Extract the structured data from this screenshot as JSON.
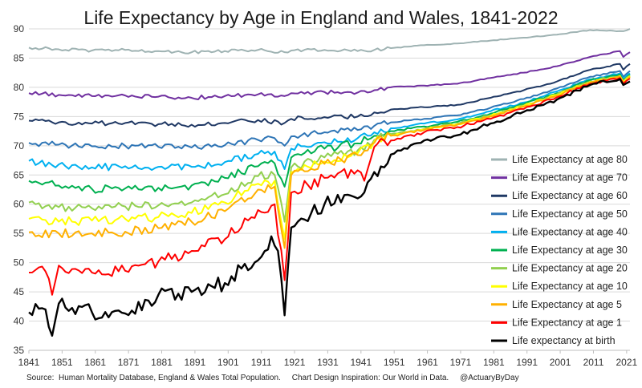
{
  "chart_data": {
    "type": "line",
    "title": "Life Expectancy by Age in England and Wales, 1841-2022",
    "xlabel": "",
    "ylabel": "",
    "xlim": [
      1841,
      2022
    ],
    "ylim": [
      35,
      90
    ],
    "grid": "horizontal",
    "legend_position": "right",
    "x_ticks": [
      "1841",
      "1851",
      "1861",
      "1871",
      "1881",
      "1891",
      "1901",
      "1911",
      "1921",
      "1931",
      "1941",
      "1951",
      "1961",
      "1971",
      "1981",
      "1991",
      "2001",
      "2011",
      "2021"
    ],
    "y_ticks": [
      "35",
      "40",
      "45",
      "50",
      "55",
      "60",
      "65",
      "70",
      "75",
      "80",
      "85",
      "90"
    ],
    "series": [
      {
        "name": "Life Expectancy at age 80",
        "color": "#9fb3b3",
        "points": [
          [
            1841,
            86.8
          ],
          [
            1850,
            86.5
          ],
          [
            1860,
            86.3
          ],
          [
            1870,
            86.4
          ],
          [
            1880,
            86.2
          ],
          [
            1890,
            86.0
          ],
          [
            1900,
            86.2
          ],
          [
            1910,
            86.4
          ],
          [
            1918,
            86.0
          ],
          [
            1920,
            86.3
          ],
          [
            1930,
            86.4
          ],
          [
            1940,
            86.2
          ],
          [
            1945,
            86.4
          ],
          [
            1950,
            86.7
          ],
          [
            1960,
            87.2
          ],
          [
            1970,
            87.5
          ],
          [
            1980,
            88.0
          ],
          [
            1990,
            88.5
          ],
          [
            2000,
            89.0
          ],
          [
            2010,
            89.8
          ],
          [
            2020,
            89.6
          ],
          [
            2022,
            90.0
          ]
        ]
      },
      {
        "name": "Life Expectancy at age 70",
        "color": "#7030a0",
        "points": [
          [
            1841,
            79.0
          ],
          [
            1850,
            78.7
          ],
          [
            1860,
            78.5
          ],
          [
            1870,
            78.6
          ],
          [
            1880,
            78.4
          ],
          [
            1890,
            78.2
          ],
          [
            1900,
            78.5
          ],
          [
            1910,
            78.8
          ],
          [
            1918,
            78.5
          ],
          [
            1920,
            79.0
          ],
          [
            1930,
            79.2
          ],
          [
            1940,
            79.1
          ],
          [
            1945,
            79.5
          ],
          [
            1950,
            80.0
          ],
          [
            1960,
            80.3
          ],
          [
            1970,
            80.6
          ],
          [
            1980,
            81.6
          ],
          [
            1990,
            82.5
          ],
          [
            2000,
            83.6
          ],
          [
            2010,
            85.2
          ],
          [
            2019,
            86.2
          ],
          [
            2020,
            85.2
          ],
          [
            2022,
            86.0
          ]
        ]
      },
      {
        "name": "Life Expectancy at age 60",
        "color": "#1f3864",
        "points": [
          [
            1841,
            74.3
          ],
          [
            1850,
            74.0
          ],
          [
            1860,
            73.8
          ],
          [
            1870,
            73.9
          ],
          [
            1880,
            73.7
          ],
          [
            1890,
            73.6
          ],
          [
            1900,
            73.9
          ],
          [
            1910,
            74.4
          ],
          [
            1918,
            73.9
          ],
          [
            1920,
            74.6
          ],
          [
            1930,
            74.9
          ],
          [
            1940,
            75.0
          ],
          [
            1945,
            75.7
          ],
          [
            1950,
            76.2
          ],
          [
            1960,
            76.6
          ],
          [
            1970,
            77.0
          ],
          [
            1980,
            78.2
          ],
          [
            1990,
            79.5
          ],
          [
            2000,
            81.0
          ],
          [
            2010,
            83.0
          ],
          [
            2019,
            84.0
          ],
          [
            2020,
            83.0
          ],
          [
            2022,
            84.0
          ]
        ]
      },
      {
        "name": "Life Expectancy at age 50",
        "color": "#2e75b6",
        "points": [
          [
            1841,
            70.5
          ],
          [
            1850,
            70.2
          ],
          [
            1860,
            69.9
          ],
          [
            1870,
            70.0
          ],
          [
            1880,
            69.8
          ],
          [
            1890,
            69.7
          ],
          [
            1900,
            70.1
          ],
          [
            1910,
            71.0
          ],
          [
            1915,
            71.3
          ],
          [
            1918,
            70.0
          ],
          [
            1920,
            71.6
          ],
          [
            1930,
            72.3
          ],
          [
            1940,
            72.7
          ],
          [
            1945,
            73.4
          ],
          [
            1950,
            74.0
          ],
          [
            1960,
            74.6
          ],
          [
            1970,
            75.2
          ],
          [
            1980,
            76.5
          ],
          [
            1990,
            78.0
          ],
          [
            2000,
            79.8
          ],
          [
            2010,
            81.8
          ],
          [
            2019,
            82.8
          ],
          [
            2020,
            81.8
          ],
          [
            2022,
            82.8
          ]
        ]
      },
      {
        "name": "Life Expectancy at age 40",
        "color": "#00b0f0",
        "points": [
          [
            1841,
            67.4
          ],
          [
            1850,
            66.8
          ],
          [
            1860,
            66.3
          ],
          [
            1870,
            66.5
          ],
          [
            1880,
            66.4
          ],
          [
            1890,
            66.4
          ],
          [
            1900,
            67.2
          ],
          [
            1910,
            68.6
          ],
          [
            1915,
            69.0
          ],
          [
            1918,
            66.0
          ],
          [
            1920,
            69.5
          ],
          [
            1930,
            70.6
          ],
          [
            1940,
            71.3
          ],
          [
            1945,
            72.3
          ],
          [
            1950,
            73.0
          ],
          [
            1960,
            73.8
          ],
          [
            1970,
            74.5
          ],
          [
            1980,
            75.9
          ],
          [
            1990,
            77.4
          ],
          [
            2000,
            79.3
          ],
          [
            2010,
            81.4
          ],
          [
            2019,
            82.4
          ],
          [
            2020,
            81.4
          ],
          [
            2022,
            82.4
          ]
        ]
      },
      {
        "name": "Life Expectancy at age 30",
        "color": "#00b050",
        "points": [
          [
            1841,
            64.0
          ],
          [
            1850,
            63.2
          ],
          [
            1860,
            62.6
          ],
          [
            1870,
            62.7
          ],
          [
            1880,
            62.8
          ],
          [
            1890,
            63.2
          ],
          [
            1900,
            64.5
          ],
          [
            1910,
            66.5
          ],
          [
            1915,
            67.0
          ],
          [
            1918,
            63.0
          ],
          [
            1920,
            68.0
          ],
          [
            1930,
            69.5
          ],
          [
            1940,
            70.4
          ],
          [
            1945,
            71.7
          ],
          [
            1950,
            72.5
          ],
          [
            1960,
            73.3
          ],
          [
            1970,
            74.1
          ],
          [
            1980,
            75.5
          ],
          [
            1990,
            77.1
          ],
          [
            2000,
            79.0
          ],
          [
            2010,
            81.2
          ],
          [
            2019,
            82.2
          ],
          [
            2020,
            81.2
          ],
          [
            2022,
            82.2
          ]
        ]
      },
      {
        "name": "Life Expectancy at age 20",
        "color": "#92d050",
        "points": [
          [
            1841,
            60.3
          ],
          [
            1850,
            59.5
          ],
          [
            1860,
            59.3
          ],
          [
            1870,
            59.6
          ],
          [
            1880,
            59.8
          ],
          [
            1890,
            60.3
          ],
          [
            1900,
            61.7
          ],
          [
            1910,
            64.8
          ],
          [
            1915,
            65.0
          ],
          [
            1918,
            57.0
          ],
          [
            1920,
            66.3
          ],
          [
            1930,
            68.0
          ],
          [
            1940,
            69.2
          ],
          [
            1945,
            71.0
          ],
          [
            1950,
            72.0
          ],
          [
            1960,
            72.9
          ],
          [
            1970,
            73.8
          ],
          [
            1980,
            75.2
          ],
          [
            1990,
            76.9
          ],
          [
            2000,
            78.8
          ],
          [
            2010,
            81.0
          ],
          [
            2019,
            82.0
          ],
          [
            2020,
            81.0
          ],
          [
            2022,
            82.0
          ]
        ]
      },
      {
        "name": "Life Expectancy at age 10",
        "color": "#ffff00",
        "points": [
          [
            1841,
            57.5
          ],
          [
            1850,
            57.0
          ],
          [
            1860,
            57.2
          ],
          [
            1870,
            57.5
          ],
          [
            1880,
            57.8
          ],
          [
            1890,
            58.5
          ],
          [
            1900,
            60.3
          ],
          [
            1910,
            63.5
          ],
          [
            1915,
            64.0
          ],
          [
            1918,
            54.0
          ],
          [
            1920,
            65.5
          ],
          [
            1930,
            67.3
          ],
          [
            1940,
            68.7
          ],
          [
            1945,
            70.7
          ],
          [
            1950,
            71.8
          ],
          [
            1960,
            72.8
          ],
          [
            1970,
            73.7
          ],
          [
            1980,
            75.1
          ],
          [
            1990,
            76.8
          ],
          [
            2000,
            78.7
          ],
          [
            2010,
            80.9
          ],
          [
            2019,
            81.9
          ],
          [
            2020,
            80.9
          ],
          [
            2022,
            81.9
          ]
        ]
      },
      {
        "name": "Life Expectancy at age 5",
        "color": "#ffb000",
        "points": [
          [
            1841,
            55.2
          ],
          [
            1850,
            55.0
          ],
          [
            1860,
            55.0
          ],
          [
            1870,
            55.3
          ],
          [
            1880,
            55.9
          ],
          [
            1890,
            57.0
          ],
          [
            1900,
            58.8
          ],
          [
            1910,
            62.5
          ],
          [
            1915,
            63.0
          ],
          [
            1918,
            52.5
          ],
          [
            1920,
            65.0
          ],
          [
            1930,
            66.9
          ],
          [
            1940,
            68.4
          ],
          [
            1945,
            70.5
          ],
          [
            1950,
            71.7
          ],
          [
            1960,
            72.7
          ],
          [
            1970,
            73.6
          ],
          [
            1980,
            75.0
          ],
          [
            1990,
            76.7
          ],
          [
            2000,
            78.6
          ],
          [
            2010,
            80.8
          ],
          [
            2019,
            81.8
          ],
          [
            2020,
            80.8
          ],
          [
            2022,
            81.8
          ]
        ]
      },
      {
        "name": "Life Expectancy at age 1",
        "color": "#ff0000",
        "points": [
          [
            1841,
            48.3
          ],
          [
            1846,
            48.5
          ],
          [
            1848,
            44.5
          ],
          [
            1850,
            49.5
          ],
          [
            1860,
            48.3
          ],
          [
            1870,
            48.6
          ],
          [
            1880,
            50.2
          ],
          [
            1890,
            52.0
          ],
          [
            1900,
            54.0
          ],
          [
            1910,
            59.0
          ],
          [
            1915,
            60.0
          ],
          [
            1918,
            47.0
          ],
          [
            1920,
            62.0
          ],
          [
            1930,
            64.5
          ],
          [
            1940,
            65.8
          ],
          [
            1942,
            64.0
          ],
          [
            1945,
            69.8
          ],
          [
            1950,
            70.9
          ],
          [
            1960,
            72.3
          ],
          [
            1970,
            73.2
          ],
          [
            1980,
            74.6
          ],
          [
            1990,
            76.3
          ],
          [
            2000,
            78.3
          ],
          [
            2010,
            80.6
          ],
          [
            2019,
            81.6
          ],
          [
            2020,
            80.6
          ],
          [
            2022,
            81.5
          ]
        ]
      },
      {
        "name": "Life expectancy at birth",
        "color": "#000000",
        "points": [
          [
            1841,
            41.5
          ],
          [
            1846,
            42.0
          ],
          [
            1847,
            39.0
          ],
          [
            1848,
            37.5
          ],
          [
            1850,
            43.0
          ],
          [
            1860,
            41.5
          ],
          [
            1870,
            41.3
          ],
          [
            1880,
            44.5
          ],
          [
            1890,
            45.0
          ],
          [
            1900,
            46.5
          ],
          [
            1905,
            49.0
          ],
          [
            1911,
            51.0
          ],
          [
            1914,
            54.5
          ],
          [
            1916,
            52.0
          ],
          [
            1918,
            41.0
          ],
          [
            1920,
            56.0
          ],
          [
            1930,
            60.0
          ],
          [
            1940,
            61.0
          ],
          [
            1942,
            62.0
          ],
          [
            1945,
            65.5
          ],
          [
            1950,
            68.5
          ],
          [
            1960,
            70.9
          ],
          [
            1970,
            71.8
          ],
          [
            1980,
            73.8
          ],
          [
            1990,
            75.8
          ],
          [
            2000,
            77.9
          ],
          [
            2010,
            80.4
          ],
          [
            2019,
            81.4
          ],
          [
            2020,
            80.4
          ],
          [
            2022,
            81.0
          ]
        ]
      }
    ],
    "source_text": "Source:  Human Mortality Database, England & Wales Total Population.     Chart Design Inspiration: Our World in Data.     @ActuaryByDay"
  }
}
